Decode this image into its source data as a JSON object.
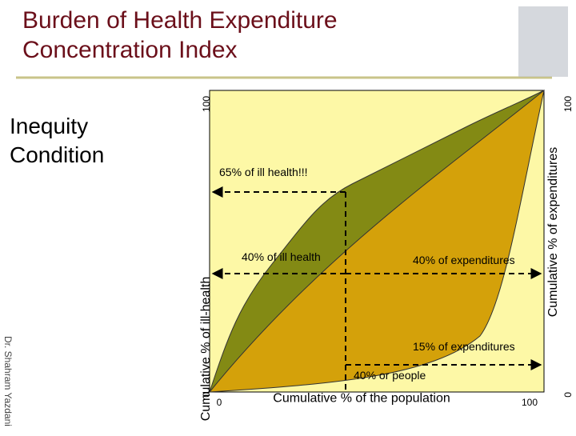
{
  "header": {
    "title_line1": "Burden of Health Expenditure",
    "title_line2": "Concentration Index"
  },
  "side": {
    "heading_line1": "Inequity",
    "heading_line2": "Condition",
    "author": "Dr. Shahram Yazdani"
  },
  "diagram": {
    "y_axis_label": "Cumulative % of ill-health",
    "y2_axis_label": "Cumulative % of expenditures",
    "x_axis_label": "Cumulative % of the population",
    "y_min": "0",
    "y_max": "100",
    "y2_min": "0",
    "y2_max": "100",
    "x_min": "0",
    "x_max": "100",
    "annotations": [
      "65% of ill health!!!",
      "40% of ill health",
      "40% of expenditures",
      "15% of expenditures",
      "40% or people"
    ]
  }
}
